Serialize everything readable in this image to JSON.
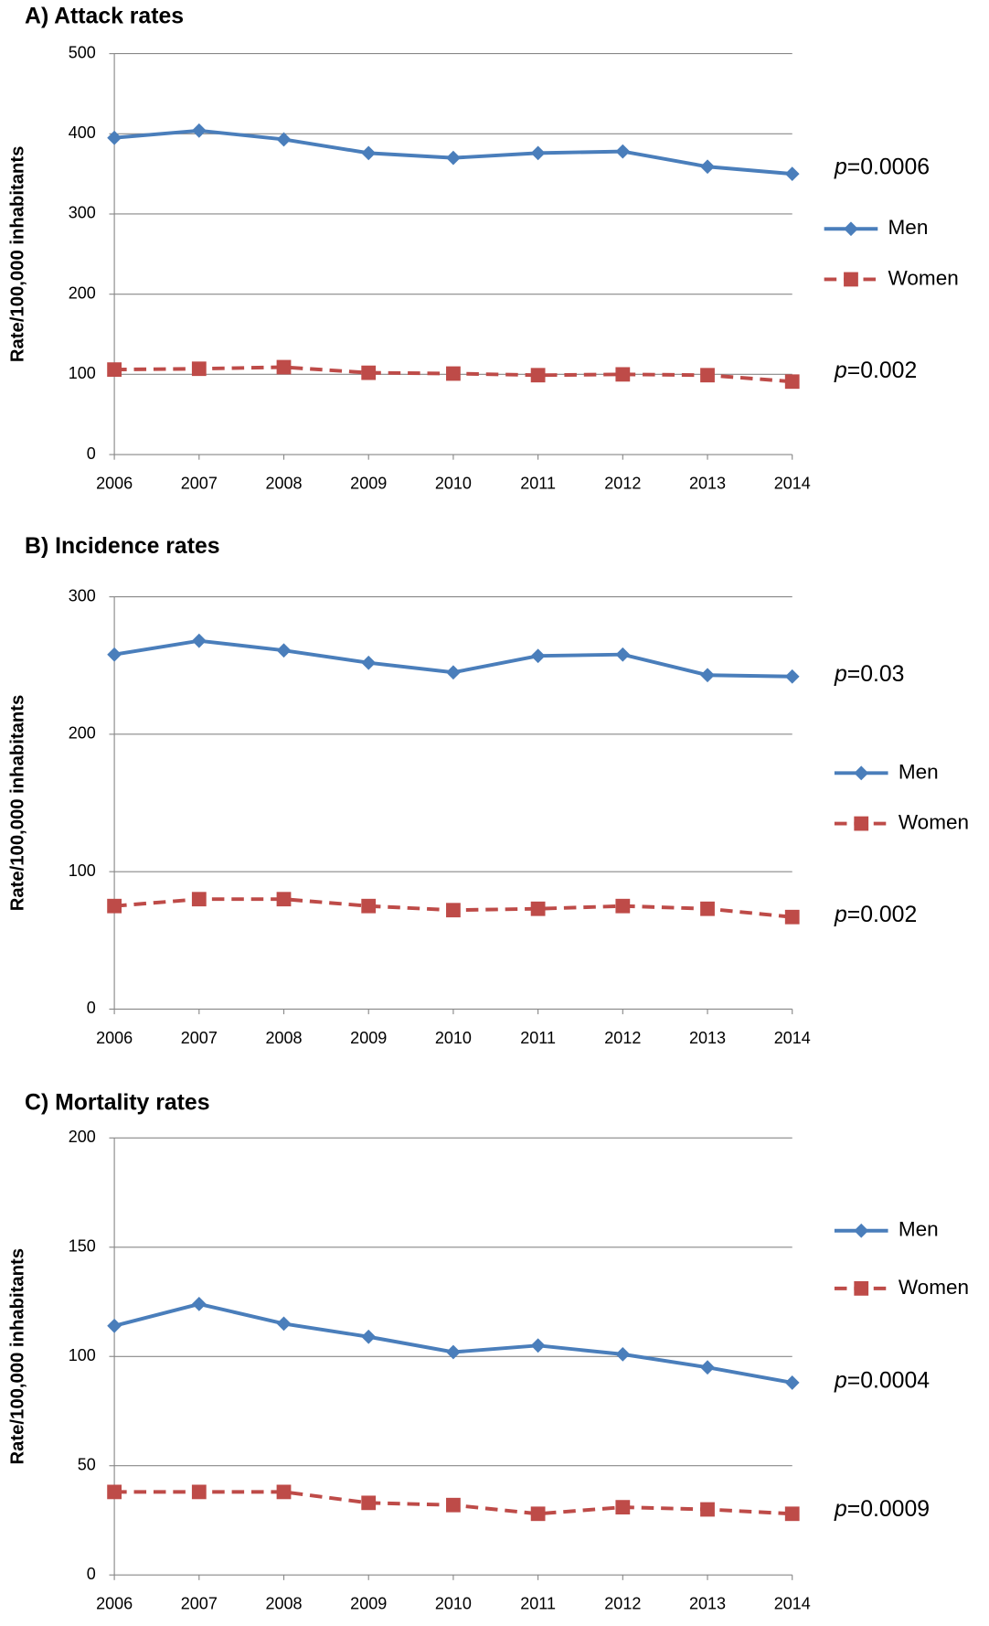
{
  "chart_data": [
    {
      "type": "line",
      "title": "A) Attack rates",
      "ylabel": "Rate/100,000  inhabitants",
      "categories": [
        "2006",
        "2007",
        "2008",
        "2009",
        "2010",
        "2011",
        "2012",
        "2013",
        "2014"
      ],
      "series": [
        {
          "name": "Men",
          "color": "#4a7ebb",
          "marker": "diamond",
          "line_style": "solid",
          "values": [
            395,
            404,
            393,
            376,
            370,
            376,
            378,
            359,
            350
          ]
        },
        {
          "name": "Women",
          "color": "#be4b48",
          "marker": "square",
          "line_style": "dashed",
          "values": [
            106,
            107,
            109,
            102,
            101,
            99,
            100,
            99,
            91
          ]
        }
      ],
      "ylim": [
        0,
        500
      ],
      "yticks": [
        0,
        100,
        200,
        300,
        400,
        500
      ],
      "grid": true,
      "legend": "right",
      "annotations": [
        "p=0.0006",
        "p=0.002"
      ]
    },
    {
      "type": "line",
      "title": "B) Incidence rates",
      "ylabel": "Rate/100,000  inhabitants",
      "categories": [
        "2006",
        "2007",
        "2008",
        "2009",
        "2010",
        "2011",
        "2012",
        "2013",
        "2014"
      ],
      "series": [
        {
          "name": "Men",
          "color": "#4a7ebb",
          "marker": "diamond",
          "line_style": "solid",
          "values": [
            258,
            268,
            261,
            252,
            245,
            257,
            258,
            243,
            242
          ]
        },
        {
          "name": "Women",
          "color": "#be4b48",
          "marker": "square",
          "line_style": "dashed",
          "values": [
            75,
            80,
            80,
            75,
            72,
            73,
            75,
            73,
            67
          ]
        }
      ],
      "ylim": [
        0,
        300
      ],
      "yticks": [
        0,
        100,
        200,
        300
      ],
      "grid": true,
      "legend": "right",
      "annotations": [
        "p=0.03",
        "p=0.002"
      ]
    },
    {
      "type": "line",
      "title": "C) Mortality rates",
      "ylabel": "Rate/100,000  inhabitants",
      "categories": [
        "2006",
        "2007",
        "2008",
        "2009",
        "2010",
        "2011",
        "2012",
        "2013",
        "2014"
      ],
      "series": [
        {
          "name": "Men",
          "color": "#4a7ebb",
          "marker": "diamond",
          "line_style": "solid",
          "values": [
            114,
            124,
            115,
            109,
            102,
            105,
            101,
            95,
            88
          ]
        },
        {
          "name": "Women",
          "color": "#be4b48",
          "marker": "square",
          "line_style": "dashed",
          "values": [
            38,
            38,
            38,
            33,
            32,
            28,
            31,
            30,
            28
          ]
        }
      ],
      "ylim": [
        0,
        200
      ],
      "yticks": [
        0,
        50,
        100,
        150,
        200
      ],
      "grid": true,
      "legend": "right",
      "annotations": [
        "p=0.0004",
        "p=0.0009"
      ]
    }
  ]
}
